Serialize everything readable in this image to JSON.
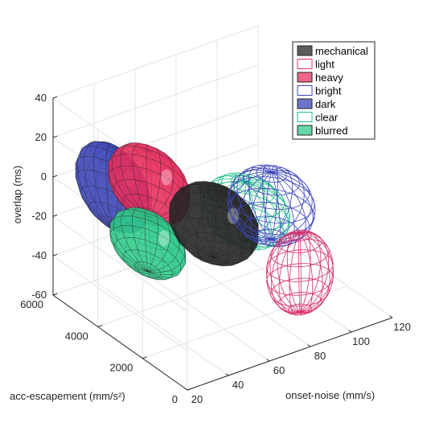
{
  "chart_data": {
    "type": "3d-ellipsoid",
    "xlabel": "onset-noise (mm/s)",
    "ylabel": "acc-escapement (mm/s²)",
    "zlabel": "overlap (ms)",
    "xlim": [
      20,
      120
    ],
    "ylim": [
      0,
      6000
    ],
    "zlim": [
      -60,
      40
    ],
    "x_ticks": [
      "20",
      "40",
      "60",
      "80",
      "100",
      "120"
    ],
    "y_ticks": [
      "0",
      "2000",
      "4000",
      "6000"
    ],
    "z_ticks": [
      "-60",
      "-40",
      "-20",
      "0",
      "20",
      "40"
    ],
    "grid": true,
    "legend_position": "top-right",
    "series": [
      {
        "name": "mechanical",
        "style": "filled",
        "color": "#262626",
        "center": {
          "x": 58,
          "y": 2300,
          "z": -8
        },
        "radii": {
          "x": 15,
          "y": 1500,
          "z": 17
        }
      },
      {
        "name": "light",
        "style": "wire",
        "color": "#d6336c",
        "center": {
          "x": 88,
          "y": 1200,
          "z": -35
        },
        "radii": {
          "x": 14,
          "y": 800,
          "z": 20
        }
      },
      {
        "name": "heavy",
        "style": "filled",
        "color": "#e8305f",
        "center": {
          "x": 45,
          "y": 4000,
          "z": 3
        },
        "radii": {
          "x": 12,
          "y": 1500,
          "z": 17
        }
      },
      {
        "name": "bright",
        "style": "wire",
        "color": "#3b45b8",
        "center": {
          "x": 85,
          "y": 2200,
          "z": -8
        },
        "radii": {
          "x": 16,
          "y": 1300,
          "z": 17
        }
      },
      {
        "name": "dark",
        "style": "filled",
        "color": "#3b45b8",
        "center": {
          "x": 33,
          "y": 4500,
          "z": 2
        },
        "radii": {
          "x": 9,
          "y": 1500,
          "z": 20
        }
      },
      {
        "name": "clear",
        "style": "wire",
        "color": "#1fbf8a",
        "center": {
          "x": 76,
          "y": 2500,
          "z": -10
        },
        "radii": {
          "x": 15,
          "y": 1400,
          "z": 15
        }
      },
      {
        "name": "blurred",
        "style": "filled",
        "color": "#2fcc8b",
        "center": {
          "x": 40,
          "y": 3600,
          "z": -22
        },
        "radii": {
          "x": 11,
          "y": 1400,
          "z": 14
        }
      }
    ]
  }
}
